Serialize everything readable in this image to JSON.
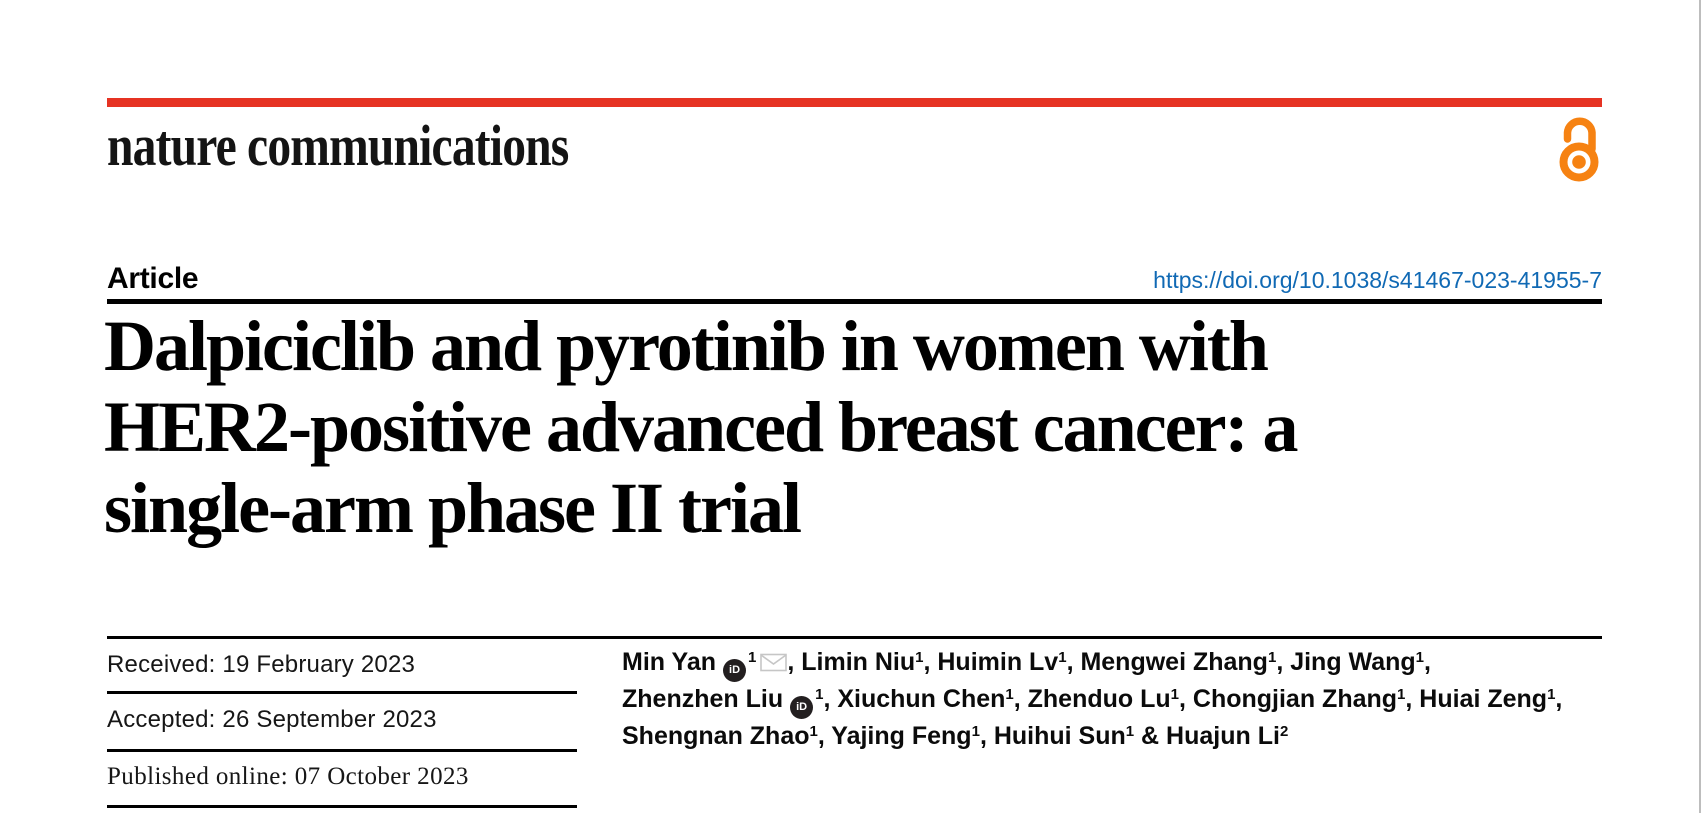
{
  "colors": {
    "brand_red": "#e63323",
    "open_access_orange": "#f68212",
    "link_blue": "#1069b4",
    "rule_black": "#000000",
    "envelope_gray": "#c6c6c6"
  },
  "masthead": {
    "journal_name": "nature communications"
  },
  "article_bar": {
    "label": "Article",
    "doi": "https://doi.org/10.1038/s41467-023-41955-7"
  },
  "title": {
    "lines": [
      "Dalpiciclib and pyrotinib in women with",
      "HER2-positive advanced breast cancer: a",
      "single-arm phase II trial"
    ]
  },
  "dates": {
    "rows": [
      {
        "label": "Received:",
        "value": "19 February 2023",
        "serif": false
      },
      {
        "label": "Accepted:",
        "value": "26 September 2023",
        "serif": false
      },
      {
        "label": "Published online:",
        "value": "07 October 2023",
        "serif": true
      }
    ]
  },
  "icons": {
    "orcid_text": "iD"
  },
  "authors": {
    "lines": [
      [
        {
          "t": "text",
          "v": "Min Yan"
        },
        {
          "t": "orcid"
        },
        {
          "t": "sup",
          "v": "1"
        },
        {
          "t": "mail"
        },
        {
          "t": "text",
          "v": ", Limin Niu"
        },
        {
          "t": "sup",
          "v": "1"
        },
        {
          "t": "text",
          "v": ", Huimin Lv"
        },
        {
          "t": "sup",
          "v": "1"
        },
        {
          "t": "text",
          "v": ", Mengwei Zhang"
        },
        {
          "t": "sup",
          "v": "1"
        },
        {
          "t": "text",
          "v": ", Jing Wang"
        },
        {
          "t": "sup",
          "v": "1"
        },
        {
          "t": "text",
          "v": ","
        }
      ],
      [
        {
          "t": "text",
          "v": "Zhenzhen Liu"
        },
        {
          "t": "orcid"
        },
        {
          "t": "sup",
          "v": "1"
        },
        {
          "t": "text",
          "v": ", Xiuchun Chen"
        },
        {
          "t": "sup",
          "v": "1"
        },
        {
          "t": "text",
          "v": ", Zhenduo Lu"
        },
        {
          "t": "sup",
          "v": "1"
        },
        {
          "t": "text",
          "v": ", Chongjian Zhang"
        },
        {
          "t": "sup",
          "v": "1"
        },
        {
          "t": "text",
          "v": ", Huiai Zeng"
        },
        {
          "t": "sup",
          "v": "1"
        },
        {
          "t": "text",
          "v": ","
        }
      ],
      [
        {
          "t": "text",
          "v": "Shengnan Zhao"
        },
        {
          "t": "sup",
          "v": "1"
        },
        {
          "t": "text",
          "v": ", Yajing Feng"
        },
        {
          "t": "sup",
          "v": "1"
        },
        {
          "t": "text",
          "v": ", Huihui Sun"
        },
        {
          "t": "sup",
          "v": "1"
        },
        {
          "t": "text",
          "v": " & Huajun Li"
        },
        {
          "t": "sup",
          "v": "2"
        }
      ]
    ]
  }
}
